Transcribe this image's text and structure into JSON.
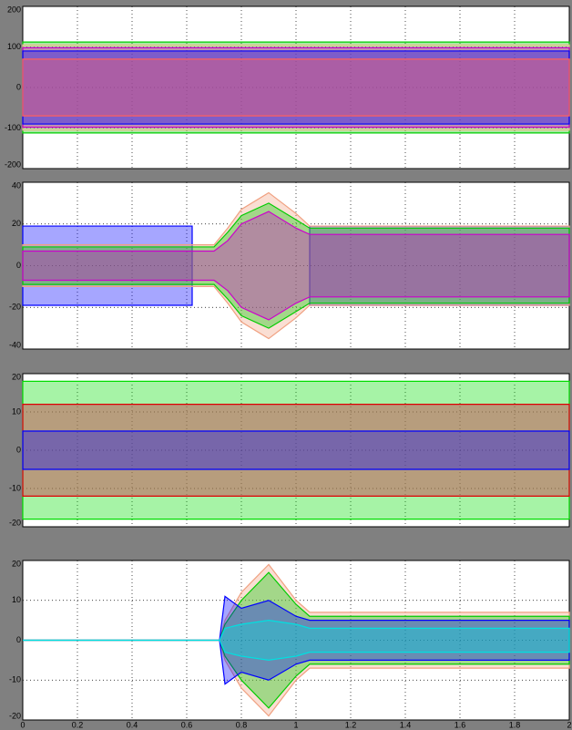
{
  "chart_data": [
    {
      "type": "line",
      "ylim": [
        -200,
        200
      ],
      "yticks": [
        -200,
        -100,
        0,
        100,
        200
      ],
      "grid": true,
      "x": [
        0,
        2
      ],
      "series": [
        {
          "color": "#00cc00",
          "values": [
            112,
            112
          ]
        },
        {
          "color": "#e8c090",
          "values": [
            105,
            105
          ]
        },
        {
          "color": "#cc00cc",
          "values": [
            98,
            98
          ]
        },
        {
          "color": "#0000ff",
          "values": [
            90,
            90
          ]
        },
        {
          "color": "#ff6060",
          "values": [
            70,
            70
          ]
        }
      ]
    },
    {
      "type": "line",
      "ylim": [
        -40,
        40
      ],
      "yticks": [
        -40,
        -20,
        0,
        20,
        40
      ],
      "grid": true,
      "x": [
        0,
        0.62,
        0.7,
        0.75,
        0.8,
        0.9,
        1.0,
        1.05,
        2
      ],
      "series": [
        {
          "color": "#0000ff",
          "values": [
            19,
            19,
            null,
            null,
            null,
            null,
            null,
            19,
            19
          ]
        },
        {
          "color": "#f0a080",
          "values": [
            10,
            10,
            10,
            18,
            27,
            35,
            25,
            19,
            19
          ]
        },
        {
          "color": "#00cc00",
          "values": [
            9,
            9,
            9,
            16,
            24,
            30,
            22,
            18,
            18
          ]
        },
        {
          "color": "#cc00cc",
          "values": [
            7,
            7,
            7,
            12,
            20,
            26,
            18,
            15,
            15
          ]
        }
      ]
    },
    {
      "type": "line",
      "ylim": [
        -20,
        20
      ],
      "yticks": [
        -20,
        -10,
        0,
        10,
        20
      ],
      "grid": true,
      "x": [
        0,
        2
      ],
      "series": [
        {
          "color": "#00dd00",
          "values": [
            18,
            18
          ]
        },
        {
          "color": "#a0f0f0",
          "values": [
            12,
            12
          ]
        },
        {
          "color": "#dd0000",
          "values": [
            12,
            12
          ]
        },
        {
          "color": "#0000ff",
          "values": [
            5,
            5
          ]
        }
      ]
    },
    {
      "type": "line",
      "ylim": [
        -20,
        20
      ],
      "yticks": [
        -20,
        -10,
        0,
        10,
        20
      ],
      "grid": true,
      "xlim": [
        0,
        2
      ],
      "xticks": [
        0,
        0.2,
        0.4,
        0.6,
        0.8,
        1,
        1.2,
        1.4,
        1.6,
        1.8,
        2
      ],
      "x": [
        0,
        0.72,
        0.74,
        0.8,
        0.9,
        1.0,
        1.05,
        2
      ],
      "series": [
        {
          "color": "#f0a080",
          "values": [
            0,
            0,
            5,
            12,
            19,
            10,
            7,
            7
          ]
        },
        {
          "color": "#00cc00",
          "values": [
            0,
            0,
            4,
            10,
            17,
            9,
            6,
            6
          ]
        },
        {
          "color": "#0000ff",
          "values": [
            0,
            0,
            11,
            8,
            10,
            6,
            5,
            5
          ]
        },
        {
          "color": "#00e0e0",
          "values": [
            0,
            0,
            3,
            4,
            5,
            4,
            3,
            3
          ]
        }
      ]
    }
  ]
}
